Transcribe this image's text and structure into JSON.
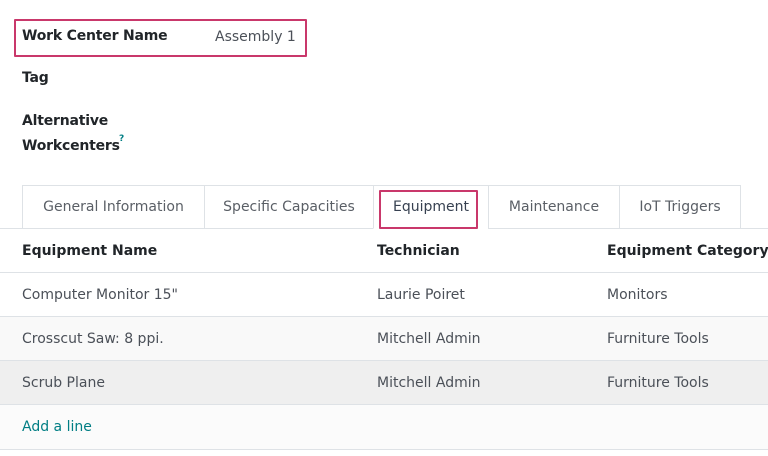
{
  "form": {
    "work_center_name_label": "Work Center Name",
    "work_center_name_value": "Assembly 1",
    "tag_label": "Tag",
    "alt_label_line1": "Alternative",
    "alt_label_line2": "Workcenters",
    "help_mark": "?"
  },
  "tabs": [
    {
      "label": "General Information"
    },
    {
      "label": "Specific Capacities"
    },
    {
      "label": "Equipment",
      "active": true
    },
    {
      "label": "Maintenance"
    },
    {
      "label": "IoT Triggers"
    }
  ],
  "table": {
    "headers": [
      "Equipment Name",
      "Technician",
      "Equipment Category"
    ],
    "rows": [
      [
        "Computer Monitor 15\"",
        "Laurie Poiret",
        "Monitors"
      ],
      [
        "Crosscut Saw: 8 ppi.",
        "Mitchell Admin",
        "Furniture Tools"
      ],
      [
        "Scrub Plane",
        "Mitchell Admin",
        "Furniture Tools"
      ]
    ],
    "add_line": "Add a line"
  },
  "colors": {
    "highlight": "#c9386b",
    "link": "#017e84"
  }
}
